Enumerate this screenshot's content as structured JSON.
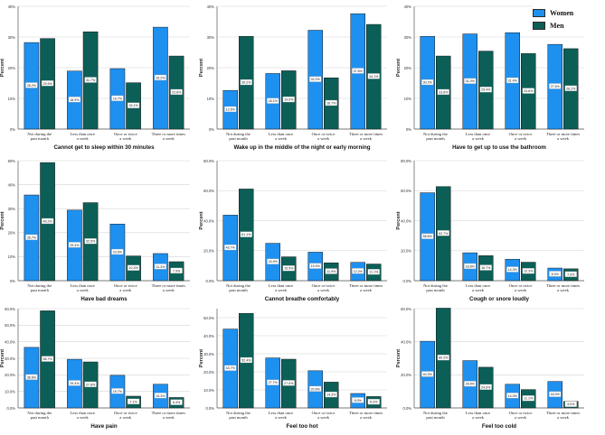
{
  "legend": {
    "women_label": "Women",
    "men_label": "Men",
    "women_color": "#1e90f0",
    "men_color": "#0b5f57"
  },
  "y_label": "Percent",
  "chart_data": [
    {
      "type": "bar",
      "title": "Cannot get to sleep within 30 minutes",
      "ylabel": "Percent",
      "ylim": [
        0,
        40
      ],
      "yticks": [
        "0%",
        "10%",
        "20%",
        "30%",
        "40%"
      ],
      "categories": [
        "Not during the past month",
        "Less than once a week",
        "Once or twice a week",
        "Three or more times a week"
      ],
      "series": [
        {
          "name": "Women",
          "values": [
            28.2,
            18.9,
            19.7,
            33.2
          ],
          "labels": [
            "28.2%",
            "18.9%",
            "19.7%",
            "33.2%"
          ]
        },
        {
          "name": "Men",
          "values": [
            29.5,
            31.7,
            15.1,
            23.8
          ],
          "labels": [
            "29.5%",
            "31.7%",
            "15.1%",
            "23.8%"
          ]
        }
      ]
    },
    {
      "type": "bar",
      "title": "Wake up in the middle of the night or early morning",
      "ylabel": "Percent",
      "ylim": [
        0,
        40
      ],
      "yticks": [
        "0%",
        "10%",
        "20%",
        "30%",
        "40%"
      ],
      "categories": [
        "Not during the past month",
        "Less than once a week",
        "Once or twice a week",
        "Three or more times a week"
      ],
      "series": [
        {
          "name": "Women",
          "values": [
            12.6,
            18.1,
            32.2,
            37.6
          ],
          "labels": [
            "12.6%",
            "18.1%",
            "32.2%",
            "37.6%"
          ]
        },
        {
          "name": "Men",
          "values": [
            30.2,
            19.0,
            16.7,
            34.1
          ],
          "labels": [
            "30.2%",
            "19.0%",
            "16.7%",
            "34.1%"
          ]
        }
      ]
    },
    {
      "type": "bar",
      "title": "Have to get up to use the bathroom",
      "ylabel": "Percent",
      "ylim": [
        0,
        40
      ],
      "yticks": [
        "0%",
        "10%",
        "20%",
        "30%",
        "40%"
      ],
      "categories": [
        "Not during the past month",
        "Less than once a week",
        "Once or twice a week",
        "Three or more times a week"
      ],
      "series": [
        {
          "name": "Women",
          "values": [
            30.2,
            31.0,
            31.4,
            27.6
          ],
          "labels": [
            "30.2%",
            "31.0%",
            "31.4%",
            "27.6%"
          ]
        },
        {
          "name": "Men",
          "values": [
            23.8,
            25.4,
            24.6,
            26.2
          ],
          "labels": [
            "23.8%",
            "25.4%",
            "24.6%",
            "26.2%"
          ]
        }
      ]
    },
    {
      "type": "bar",
      "title": "Have bad dreams",
      "ylabel": "Percent",
      "ylim": [
        0,
        50
      ],
      "yticks": [
        "0%",
        "10%",
        "20%",
        "30%",
        "40%",
        "50%"
      ],
      "categories": [
        "Not during the past month",
        "Less than once a week",
        "Once or twice a week",
        "Three or more times a week"
      ],
      "series": [
        {
          "name": "Women",
          "values": [
            35.7,
            29.4,
            23.6,
            11.3
          ],
          "labels": [
            "35.7%",
            "29.4%",
            "23.6%",
            "11.3%"
          ]
        },
        {
          "name": "Men",
          "values": [
            49.2,
            32.5,
            10.3,
            7.9
          ],
          "labels": [
            "49.2%",
            "32.5%",
            "10.3%",
            "7.9%"
          ]
        }
      ]
    },
    {
      "type": "bar",
      "title": "Cannot breathe comfortably",
      "ylabel": "Percent",
      "ylim": [
        0,
        80
      ],
      "yticks": [
        "0.0%",
        "20.0%",
        "40.0%",
        "60.0%",
        "80.0%"
      ],
      "categories": [
        "Not during the past month",
        "Less than once a week",
        "Once or twice a week",
        "Three or more times a week"
      ],
      "series": [
        {
          "name": "Women",
          "values": [
            43.7,
            24.9,
            19.0,
            12.2
          ],
          "labels": [
            "43.7%",
            "24.9%",
            "19.0%",
            "12.2%"
          ]
        },
        {
          "name": "Men",
          "values": [
            61.1,
            15.9,
            11.9,
            11.1
          ],
          "labels": [
            "61.1%",
            "15.9%",
            "11.9%",
            "11.1%"
          ]
        }
      ]
    },
    {
      "type": "bar",
      "title": "Cough or snore loudly",
      "ylabel": "Percent",
      "ylim": [
        0,
        80
      ],
      "yticks": [
        "0.0%",
        "20.0%",
        "40.0%",
        "60.0%",
        "80.0%"
      ],
      "categories": [
        "Not during the past month",
        "Less than once a week",
        "Once or twice a week",
        "Three or more times a week"
      ],
      "series": [
        {
          "name": "Women",
          "values": [
            58.6,
            18.6,
            14.3,
            8.4
          ],
          "labels": [
            "58.6%",
            "18.6%",
            "14.3%",
            "8.4%"
          ]
        },
        {
          "name": "Men",
          "values": [
            62.7,
            16.7,
            12.3,
            7.9
          ],
          "labels": [
            "62.7%",
            "16.7%",
            "12.3%",
            "7.9%"
          ]
        }
      ]
    },
    {
      "type": "bar",
      "title": "Have pain",
      "ylabel": "Percent",
      "ylim": [
        0,
        60
      ],
      "yticks": [
        "0.0%",
        "10.0%",
        "20.0%",
        "30.0%",
        "40.0%",
        "50.0%",
        "60.0%"
      ],
      "categories": [
        "Not during the past month",
        "Less than once a week",
        "Once or twice a week",
        "Three or more times a week"
      ],
      "series": [
        {
          "name": "Women",
          "values": [
            36.6,
            29.4,
            19.7,
            14.3
          ],
          "labels": [
            "36.6%",
            "29.4%",
            "19.7%",
            "14.3%"
          ]
        },
        {
          "name": "Men",
          "values": [
            58.7,
            27.8,
            7.1,
            6.3
          ],
          "labels": [
            "58.7%",
            "27.8%",
            "7.1%",
            "6.3%"
          ]
        }
      ]
    },
    {
      "type": "bar",
      "title": "Feel too hot",
      "ylabel": "Percent",
      "ylim": [
        0,
        55
      ],
      "yticks": [
        "0.0%",
        "10.0%",
        "20.0%",
        "30.0%",
        "40.0%",
        "50.0%"
      ],
      "categories": [
        "Not during the past month",
        "Less than once a week",
        "Once or twice a week",
        "Three or more times a week"
      ],
      "series": [
        {
          "name": "Women",
          "values": [
            43.7,
            27.7,
            20.6,
            8.0
          ],
          "labels": [
            "43.7%",
            "27.7%",
            "20.6%",
            "8.0%"
          ]
        },
        {
          "name": "Men",
          "values": [
            52.4,
            27.0,
            14.3,
            6.3
          ],
          "labels": [
            "52.4%",
            "27.0%",
            "14.3%",
            "6.3%"
          ]
        }
      ]
    },
    {
      "type": "bar",
      "title": "Feel too cold",
      "ylabel": "Percent",
      "ylim": [
        0,
        60
      ],
      "yticks": [
        "0.0%",
        "20.0%",
        "40.0%",
        "60.0%"
      ],
      "categories": [
        "Not during the past month",
        "Less than once a week",
        "Once or twice a week",
        "Three or more times a week"
      ],
      "series": [
        {
          "name": "Women",
          "values": [
            40.3,
            28.6,
            14.3,
            16.0
          ],
          "labels": [
            "40.3%",
            "28.6%",
            "14.3%",
            "16.0%"
          ]
        },
        {
          "name": "Men",
          "values": [
            60.3,
            24.6,
            11.1,
            4.0
          ],
          "labels": [
            "60.3%",
            "24.6%",
            "11.1%",
            "4.0%"
          ]
        }
      ]
    }
  ]
}
